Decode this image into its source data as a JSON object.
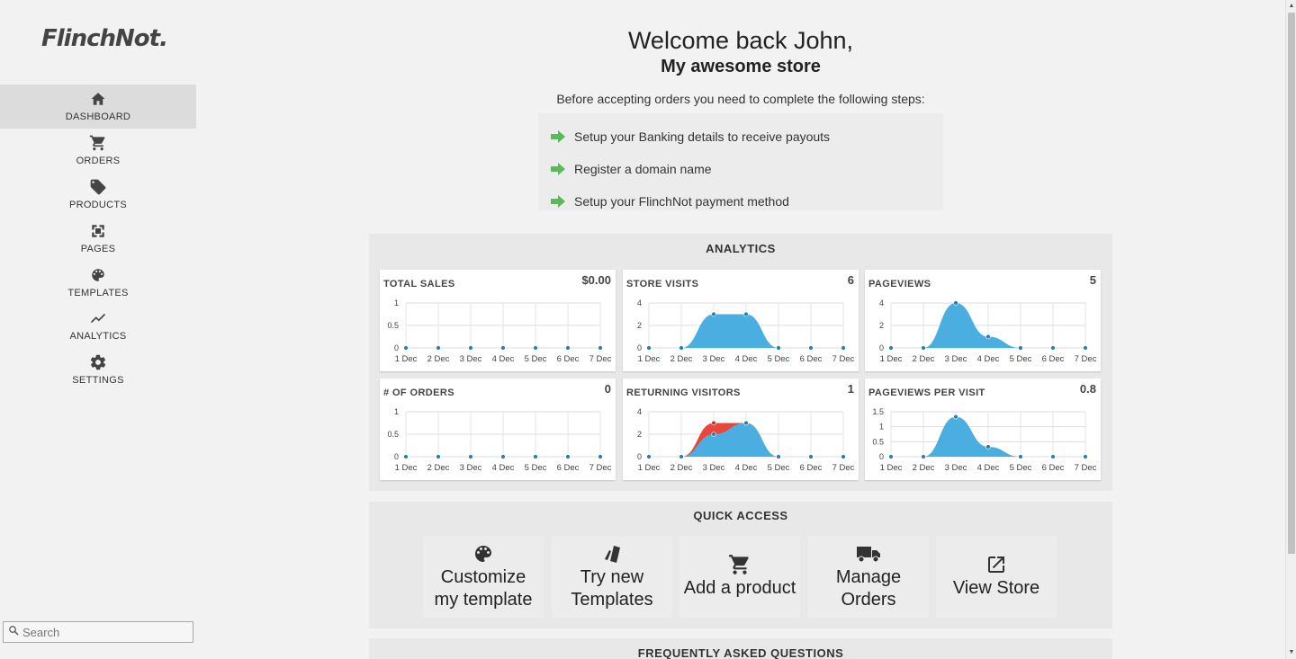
{
  "brand": {
    "logo_text": "FlinchNot",
    "logo_dot": "."
  },
  "sidebar": {
    "items": [
      {
        "label": "DASHBOARD",
        "icon": "home-icon",
        "active": true
      },
      {
        "label": "ORDERS",
        "icon": "cart-icon"
      },
      {
        "label": "PRODUCTS",
        "icon": "tag-icon"
      },
      {
        "label": "PAGES",
        "icon": "pages-icon"
      },
      {
        "label": "TEMPLATES",
        "icon": "palette-icon"
      },
      {
        "label": "ANALYTICS",
        "icon": "trend-icon"
      },
      {
        "label": "SETTINGS",
        "icon": "gear-icon"
      }
    ],
    "search_placeholder": "Search"
  },
  "header": {
    "welcome": "Welcome back John,",
    "store_name": "My awesome store"
  },
  "steps": {
    "intro": "Before accepting orders you need to complete the following steps:",
    "items": [
      "Setup your Banking details to receive payouts",
      "Register a domain name",
      "Setup your FlinchNot payment method"
    ],
    "arrow_color": "#5cb85c"
  },
  "analytics": {
    "title": "ANALYTICS",
    "series_color": "#4aaee0",
    "secondary_color": "#e8473a"
  },
  "chart_data": [
    {
      "type": "area",
      "title": "TOTAL SALES",
      "value": "$0.00",
      "x": [
        "1 Dec",
        "2 Dec",
        "3 Dec",
        "4 Dec",
        "5 Dec",
        "6 Dec",
        "7 Dec"
      ],
      "series": [
        {
          "values": [
            0,
            0,
            0,
            0,
            0,
            0,
            0
          ]
        }
      ],
      "yticks": [
        "1",
        "0.5",
        "0"
      ],
      "ylim": [
        0,
        1
      ]
    },
    {
      "type": "area",
      "title": "STORE VISITS",
      "value": "6",
      "x": [
        "1 Dec",
        "2 Dec",
        "3 Dec",
        "4 Dec",
        "5 Dec",
        "6 Dec",
        "7 Dec"
      ],
      "series": [
        {
          "values": [
            0,
            0,
            3,
            3,
            0,
            0,
            0
          ]
        }
      ],
      "yticks": [
        "4",
        "2",
        "0"
      ],
      "ylim": [
        0,
        4
      ]
    },
    {
      "type": "area",
      "title": "PAGEVIEWS",
      "value": "5",
      "x": [
        "1 Dec",
        "2 Dec",
        "3 Dec",
        "4 Dec",
        "5 Dec",
        "6 Dec",
        "7 Dec"
      ],
      "series": [
        {
          "values": [
            0,
            0,
            4,
            1,
            0,
            0,
            0
          ]
        }
      ],
      "yticks": [
        "4",
        "2",
        "0"
      ],
      "ylim": [
        0,
        4
      ]
    },
    {
      "type": "area",
      "title": "# OF ORDERS",
      "value": "0",
      "x": [
        "1 Dec",
        "2 Dec",
        "3 Dec",
        "4 Dec",
        "5 Dec",
        "6 Dec",
        "7 Dec"
      ],
      "series": [
        {
          "values": [
            0,
            0,
            0,
            0,
            0,
            0,
            0
          ]
        }
      ],
      "yticks": [
        "1",
        "0.5",
        "0"
      ],
      "ylim": [
        0,
        1
      ]
    },
    {
      "type": "area",
      "title": "RETURNING VISITORS",
      "value": "1",
      "x": [
        "1 Dec",
        "2 Dec",
        "3 Dec",
        "4 Dec",
        "5 Dec",
        "6 Dec",
        "7 Dec"
      ],
      "series": [
        {
          "values": [
            0,
            0,
            3,
            3,
            0,
            0,
            0
          ]
        },
        {
          "values": [
            0,
            0,
            2,
            3,
            0,
            0,
            0
          ]
        }
      ],
      "yticks": [
        "4",
        "2",
        "0"
      ],
      "ylim": [
        0,
        4
      ]
    },
    {
      "type": "area",
      "title": "PAGEVIEWS PER VISIT",
      "value": "0.8",
      "x": [
        "1 Dec",
        "2 Dec",
        "3 Dec",
        "4 Dec",
        "5 Dec",
        "6 Dec",
        "7 Dec"
      ],
      "series": [
        {
          "values": [
            0,
            0,
            1.33,
            0.33,
            0,
            0,
            0
          ]
        }
      ],
      "yticks": [
        "1.5",
        "1",
        "0.5",
        "0"
      ],
      "ylim": [
        0,
        1.5
      ]
    }
  ],
  "quick_access": {
    "title": "QUICK ACCESS",
    "items": [
      {
        "label": "Customize my template",
        "icon": "palette-icon"
      },
      {
        "label": "Try new Templates",
        "icon": "cards-icon"
      },
      {
        "label": "Add a product",
        "icon": "cart-icon"
      },
      {
        "label": "Manage Orders",
        "icon": "truck-icon"
      },
      {
        "label": "View Store",
        "icon": "external-link-icon"
      }
    ]
  },
  "faq": {
    "title": "FREQUENTLY ASKED QUESTIONS"
  }
}
